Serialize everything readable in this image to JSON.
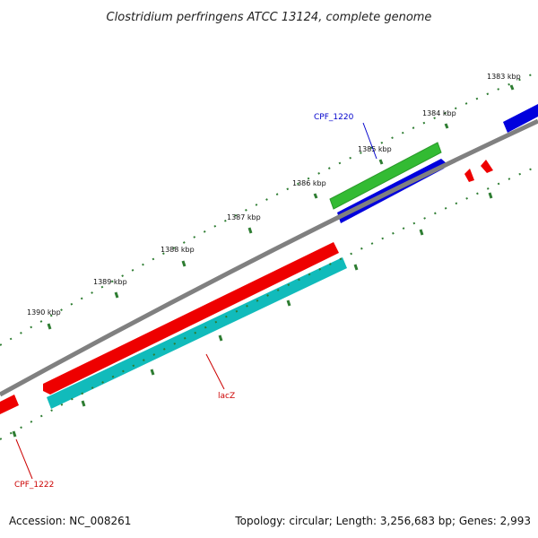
{
  "title": "Clostridium perfringens ATCC 13124, complete genome",
  "footer": {
    "accession": "Accession: NC_008261",
    "summary": "Topology: circular; Length: 3,256,683 bp; Genes: 2,993"
  },
  "tick_labels": [
    "1383 kbp",
    "1384 kbp",
    "1385 kbp",
    "1386 kbp",
    "1387 kbp",
    "1388 kbp",
    "1389 kbp",
    "1390 kbp"
  ],
  "gene_labels": {
    "cpf_1220": "CPF_1220",
    "lacz": "lacZ",
    "cpf_1222": "CPF_1222"
  },
  "colors": {
    "backbone": "#808080",
    "red_feature": "#ee0000",
    "blue_feature": "#0000dd",
    "green_feature": "#33bb33",
    "cyan_feature": "#11bbbb",
    "tick": "#2e7d32",
    "gene_label_blue": "#0000cc",
    "gene_label_red": "#cc0000"
  }
}
